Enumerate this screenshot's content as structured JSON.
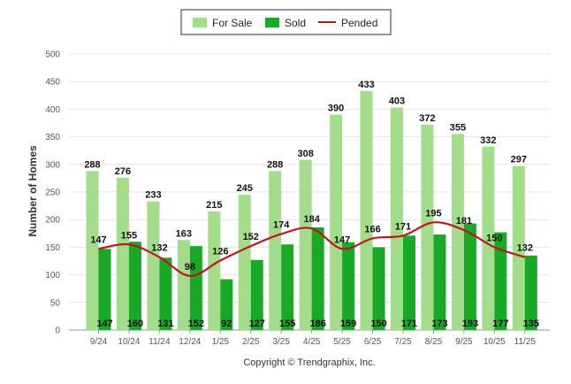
{
  "chart_data": {
    "type": "bar",
    "ylabel": "Number of Homes",
    "xlabel": "",
    "ylim": [
      0,
      500
    ],
    "yticks": [
      0,
      50,
      100,
      150,
      200,
      250,
      300,
      350,
      400,
      450,
      500
    ],
    "grid": true,
    "legend_position": "top-center",
    "categories": [
      "9/24",
      "10/24",
      "11/24",
      "12/24",
      "1/25",
      "2/25",
      "3/25",
      "4/25",
      "5/25",
      "6/25",
      "7/25",
      "8/25",
      "9/25",
      "10/25",
      "11/25"
    ],
    "series": [
      {
        "name": "For Sale",
        "type": "bar",
        "color": "#a3dd8b",
        "values": [
          288,
          276,
          233,
          163,
          215,
          245,
          288,
          308,
          390,
          433,
          403,
          372,
          355,
          332,
          297
        ]
      },
      {
        "name": "Sold",
        "type": "bar",
        "color": "#1aa829",
        "values": [
          147,
          160,
          131,
          152,
          92,
          127,
          155,
          186,
          159,
          150,
          171,
          173,
          193,
          177,
          135
        ]
      },
      {
        "name": "Pended",
        "type": "line",
        "color": "#c0151a",
        "values": [
          147,
          155,
          132,
          98,
          126,
          152,
          174,
          184,
          147,
          166,
          171,
          195,
          181,
          150,
          132
        ]
      }
    ]
  },
  "footer": {
    "copyright": "Copyright © Trendgraphix, Inc."
  }
}
